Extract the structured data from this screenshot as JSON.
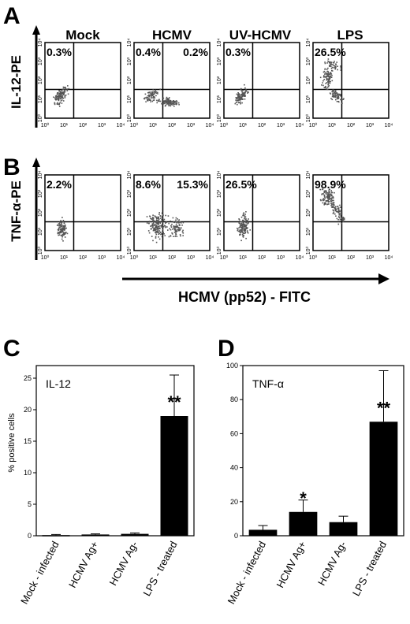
{
  "panel_labels": {
    "A": "A",
    "B": "B",
    "C": "C",
    "D": "D"
  },
  "flow": {
    "column_titles": [
      "Mock",
      "HCMV",
      "UV-HCMV",
      "LPS"
    ],
    "row_a_ylabel": "IL-12-PE",
    "row_b_ylabel": "TNF-α-PE",
    "x_axis_label": "HCMV (pp52) - FITC",
    "tick_labels": [
      "10⁰",
      "10¹",
      "10²",
      "10³",
      "10⁴"
    ],
    "row_a_percents": [
      {
        "ul": "0.3%",
        "ur": ""
      },
      {
        "ul": "0.4%",
        "ur": "0.2%"
      },
      {
        "ul": "0.3%",
        "ur": ""
      },
      {
        "ul": "26.5%",
        "ur": ""
      }
    ],
    "row_b_percents": [
      {
        "ul": "2.2%",
        "ur": ""
      },
      {
        "ul": "8.6%",
        "ur": "15.3%"
      },
      {
        "ul": "26.5%",
        "ur": ""
      },
      {
        "ul": "98.9%",
        "ur": ""
      }
    ],
    "point_color": "#555555"
  },
  "chart_data": [
    {
      "type": "bar",
      "panel": "C",
      "title": "IL-12",
      "ylabel": "% positive cells",
      "categories": [
        "Mock - infected",
        "HCMV Ag+",
        "HCMV Ag-",
        "LPS - treated"
      ],
      "values": [
        0.1,
        0.2,
        0.3,
        19
      ],
      "errors": [
        0.1,
        0.1,
        0.15,
        6.5
      ],
      "significance": [
        "",
        "",
        "",
        "**"
      ],
      "ylim": [
        0,
        27
      ],
      "yticks": [
        0,
        5,
        10,
        15,
        20,
        25
      ],
      "bar_color": "#000000"
    },
    {
      "type": "bar",
      "panel": "D",
      "title": "TNF-α",
      "ylabel": "",
      "categories": [
        "Mock - infected",
        "HCMV Ag+",
        "HCMV Ag-",
        "LPS - treated"
      ],
      "values": [
        3.5,
        14,
        8,
        67
      ],
      "errors": [
        2.5,
        7,
        3.5,
        30
      ],
      "significance": [
        "",
        "*",
        "",
        "**"
      ],
      "ylim": [
        0,
        100
      ],
      "yticks": [
        0,
        20,
        40,
        60,
        80,
        100
      ],
      "bar_color": "#000000"
    }
  ]
}
